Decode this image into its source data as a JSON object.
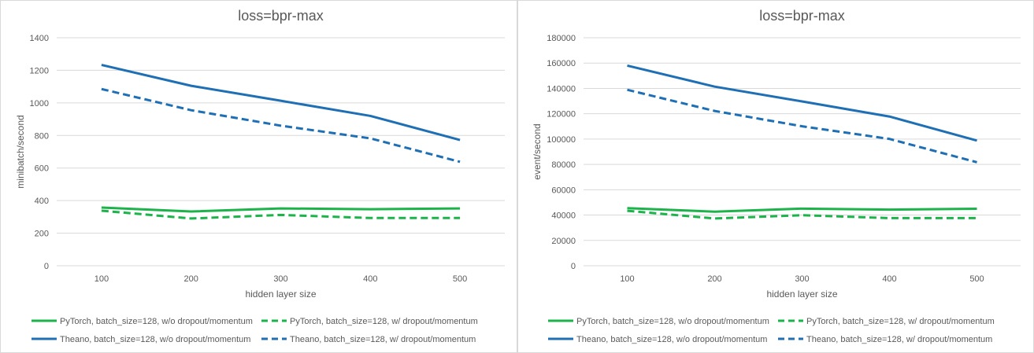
{
  "chart_data": [
    {
      "type": "line",
      "title": "loss=bpr-max",
      "xlabel": "hidden layer size",
      "ylabel": "minibatch/second",
      "categories": [
        "100",
        "200",
        "300",
        "400",
        "500"
      ],
      "ylim": [
        0,
        1400
      ],
      "yticks": [
        0,
        200,
        400,
        600,
        800,
        1000,
        1200,
        1400
      ],
      "grid": true,
      "legend_position": "bottom",
      "series": [
        {
          "name": "PyTorch, batch_size=128, w/o dropout/momentum",
          "values": [
            357,
            333,
            352,
            347,
            352
          ],
          "color": "#1db34b",
          "dashed": false
        },
        {
          "name": "PyTorch, batch_size=128, w/ dropout/momentum",
          "values": [
            338,
            290,
            312,
            293,
            293
          ],
          "color": "#1db34b",
          "dashed": true
        },
        {
          "name": "Theano, batch_size=128, w/o dropout/momentum",
          "values": [
            1233,
            1105,
            1013,
            920,
            772
          ],
          "color": "#1f6fb5",
          "dashed": false
        },
        {
          "name": "Theano, batch_size=128, w/ dropout/momentum",
          "values": [
            1085,
            955,
            860,
            782,
            638
          ],
          "color": "#1f6fb5",
          "dashed": true
        }
      ]
    },
    {
      "type": "line",
      "title": "loss=bpr-max",
      "xlabel": "hidden layer size",
      "ylabel": "event/second",
      "categories": [
        "100",
        "200",
        "300",
        "400",
        "500"
      ],
      "ylim": [
        0,
        180000
      ],
      "yticks": [
        0,
        20000,
        40000,
        60000,
        80000,
        100000,
        120000,
        140000,
        160000,
        180000
      ],
      "grid": true,
      "legend_position": "bottom",
      "series": [
        {
          "name": "PyTorch, batch_size=128, w/o dropout/momentum",
          "values": [
            45500,
            42700,
            45100,
            44300,
            45000
          ],
          "color": "#1db34b",
          "dashed": false
        },
        {
          "name": "PyTorch, batch_size=128, w/ dropout/momentum",
          "values": [
            43400,
            37300,
            39900,
            37600,
            37600
          ],
          "color": "#1db34b",
          "dashed": true
        },
        {
          "name": "Theano, batch_size=128, w/o dropout/momentum",
          "values": [
            158000,
            141400,
            129700,
            117800,
            98800
          ],
          "color": "#1f6fb5",
          "dashed": false
        },
        {
          "name": "Theano, batch_size=128, w/ dropout/momentum",
          "values": [
            138900,
            122200,
            110100,
            100100,
            81700
          ],
          "color": "#1f6fb5",
          "dashed": true
        }
      ]
    }
  ]
}
